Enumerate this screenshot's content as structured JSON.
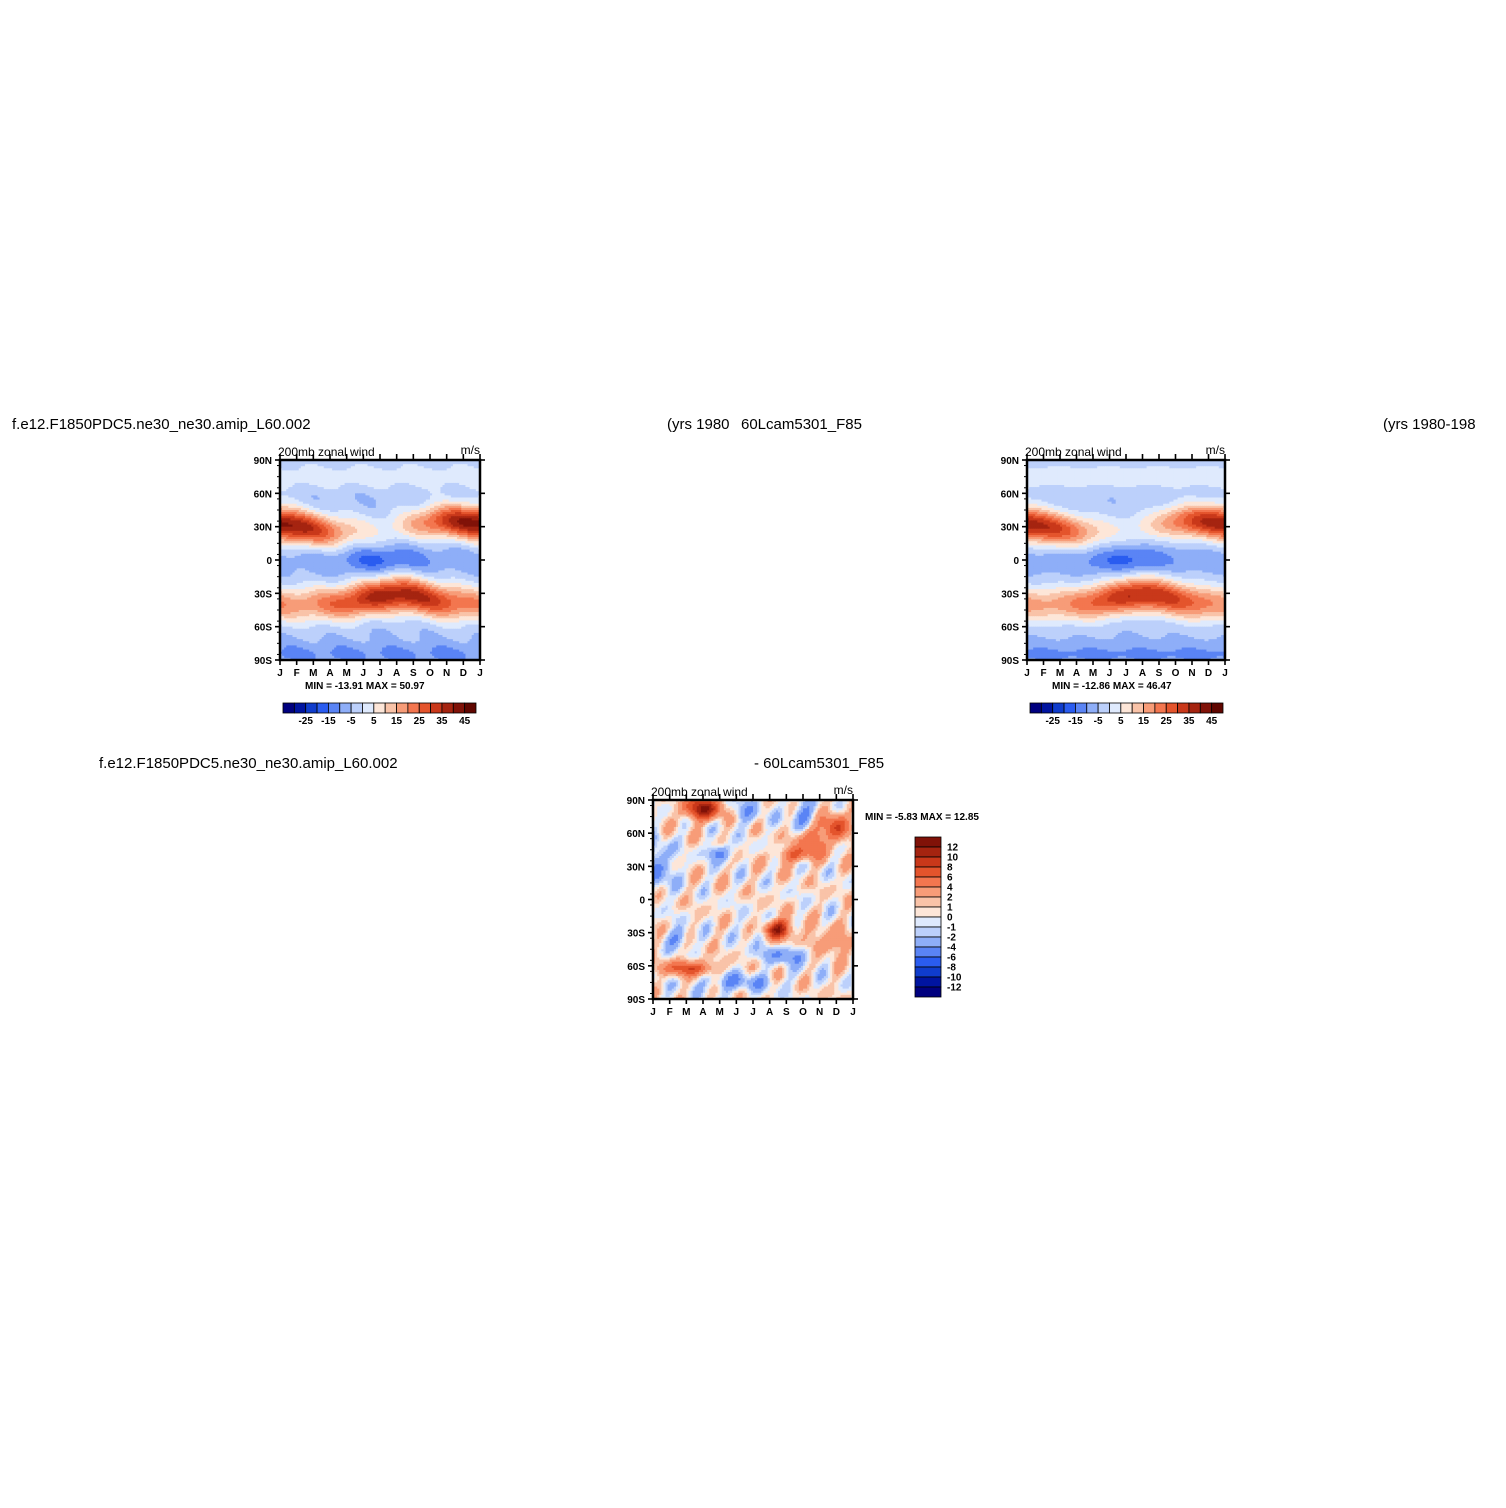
{
  "titles": {
    "top_left_case": "f.e12.F1850PDC5.ne30_ne30.amip_L60.002",
    "top_left_years": "(yrs 1980",
    "top_right_case": "60Lcam5301_F85",
    "top_right_years": "(yrs 1980-198",
    "diff_case": "f.e12.F1850PDC5.ne30_ne30.amip_L60.002",
    "diff_ref": "- 60Lcam5301_F85"
  },
  "chart_data": [
    {
      "id": "panel_case",
      "type": "heatmap",
      "title": "200mb zonal wind",
      "units": "m/s",
      "x_ticks": [
        "J",
        "F",
        "M",
        "A",
        "M",
        "J",
        "J",
        "A",
        "S",
        "O",
        "N",
        "D",
        "J"
      ],
      "y_ticks": [
        "90N",
        "60N",
        "30N",
        "0",
        "30S",
        "60S",
        "90S"
      ],
      "stats": "MIN = -13.91 MAX = 50.97",
      "min": -13.91,
      "max": 50.97,
      "colorbar_labels": [
        "-25",
        "-15",
        "-5",
        "5",
        "15",
        "25",
        "35",
        "45"
      ],
      "colorbar_levels": [
        -30,
        -25,
        -20,
        -15,
        -10,
        -5,
        0,
        5,
        10,
        15,
        20,
        25,
        30,
        35,
        40,
        45,
        50
      ],
      "colorbar_colors": [
        "#00007f",
        "#0014a0",
        "#0f3ccc",
        "#2a5cf0",
        "#5a84f5",
        "#8eaef8",
        "#bcd0fb",
        "#dfeafd",
        "#fde6d8",
        "#f9c3a8",
        "#f79c78",
        "#f3764f",
        "#e4542c",
        "#c9381a",
        "#a52410",
        "#801208",
        "#600600"
      ],
      "peaks": {
        "nh_jet_jan": 50,
        "sh_jet_aug": 45,
        "eq_min_jun": -12
      },
      "orientation": "horizontal"
    },
    {
      "id": "panel_ref",
      "type": "heatmap",
      "title": "200mb zonal wind",
      "units": "m/s",
      "x_ticks": [
        "J",
        "F",
        "M",
        "A",
        "M",
        "J",
        "J",
        "A",
        "S",
        "O",
        "N",
        "D",
        "J"
      ],
      "y_ticks": [
        "90N",
        "60N",
        "30N",
        "0",
        "30S",
        "60S",
        "90S"
      ],
      "stats": "MIN = -12.86 MAX = 46.47",
      "min": -12.86,
      "max": 46.47,
      "colorbar_labels": [
        "-25",
        "-15",
        "-5",
        "5",
        "15",
        "25",
        "35",
        "45"
      ],
      "colorbar_levels": [
        -30,
        -25,
        -20,
        -15,
        -10,
        -5,
        0,
        5,
        10,
        15,
        20,
        25,
        30,
        35,
        40,
        45,
        50
      ],
      "colorbar_colors": [
        "#00007f",
        "#0014a0",
        "#0f3ccc",
        "#2a5cf0",
        "#5a84f5",
        "#8eaef8",
        "#bcd0fb",
        "#dfeafd",
        "#fde6d8",
        "#f9c3a8",
        "#f79c78",
        "#f3764f",
        "#e4542c",
        "#c9381a",
        "#a52410",
        "#801208",
        "#600600"
      ],
      "peaks": {
        "nh_jet_jan": 46,
        "sh_jet_aug": 42,
        "eq_min_jun": -11
      },
      "orientation": "horizontal"
    },
    {
      "id": "panel_diff",
      "type": "heatmap",
      "title": "200mb zonal wind",
      "units": "m/s",
      "x_ticks": [
        "J",
        "F",
        "M",
        "A",
        "M",
        "J",
        "J",
        "A",
        "S",
        "O",
        "N",
        "D",
        "J"
      ],
      "y_ticks": [
        "90N",
        "60N",
        "30N",
        "0",
        "30S",
        "60S",
        "90S"
      ],
      "stats": "MIN = -5.83 MAX = 12.85",
      "min": -5.83,
      "max": 12.85,
      "colorbar_labels": [
        "12",
        "10",
        "8",
        "6",
        "4",
        "2",
        "1",
        "0",
        "-1",
        "-2",
        "-4",
        "-6",
        "-8",
        "-10",
        "-12"
      ],
      "colorbar_levels": [
        14,
        12,
        10,
        8,
        6,
        4,
        2,
        1,
        0,
        -1,
        -2,
        -4,
        -6,
        -8,
        -10,
        -12
      ],
      "colorbar_colors": [
        "#801208",
        "#a52410",
        "#c9381a",
        "#e4542c",
        "#f3764f",
        "#f79c78",
        "#f9c3a8",
        "#fde6d8",
        "#dfeafd",
        "#bcd0fb",
        "#8eaef8",
        "#5a84f5",
        "#2a5cf0",
        "#0f3ccc",
        "#0014a0",
        "#00007f"
      ],
      "orientation": "vertical"
    }
  ]
}
